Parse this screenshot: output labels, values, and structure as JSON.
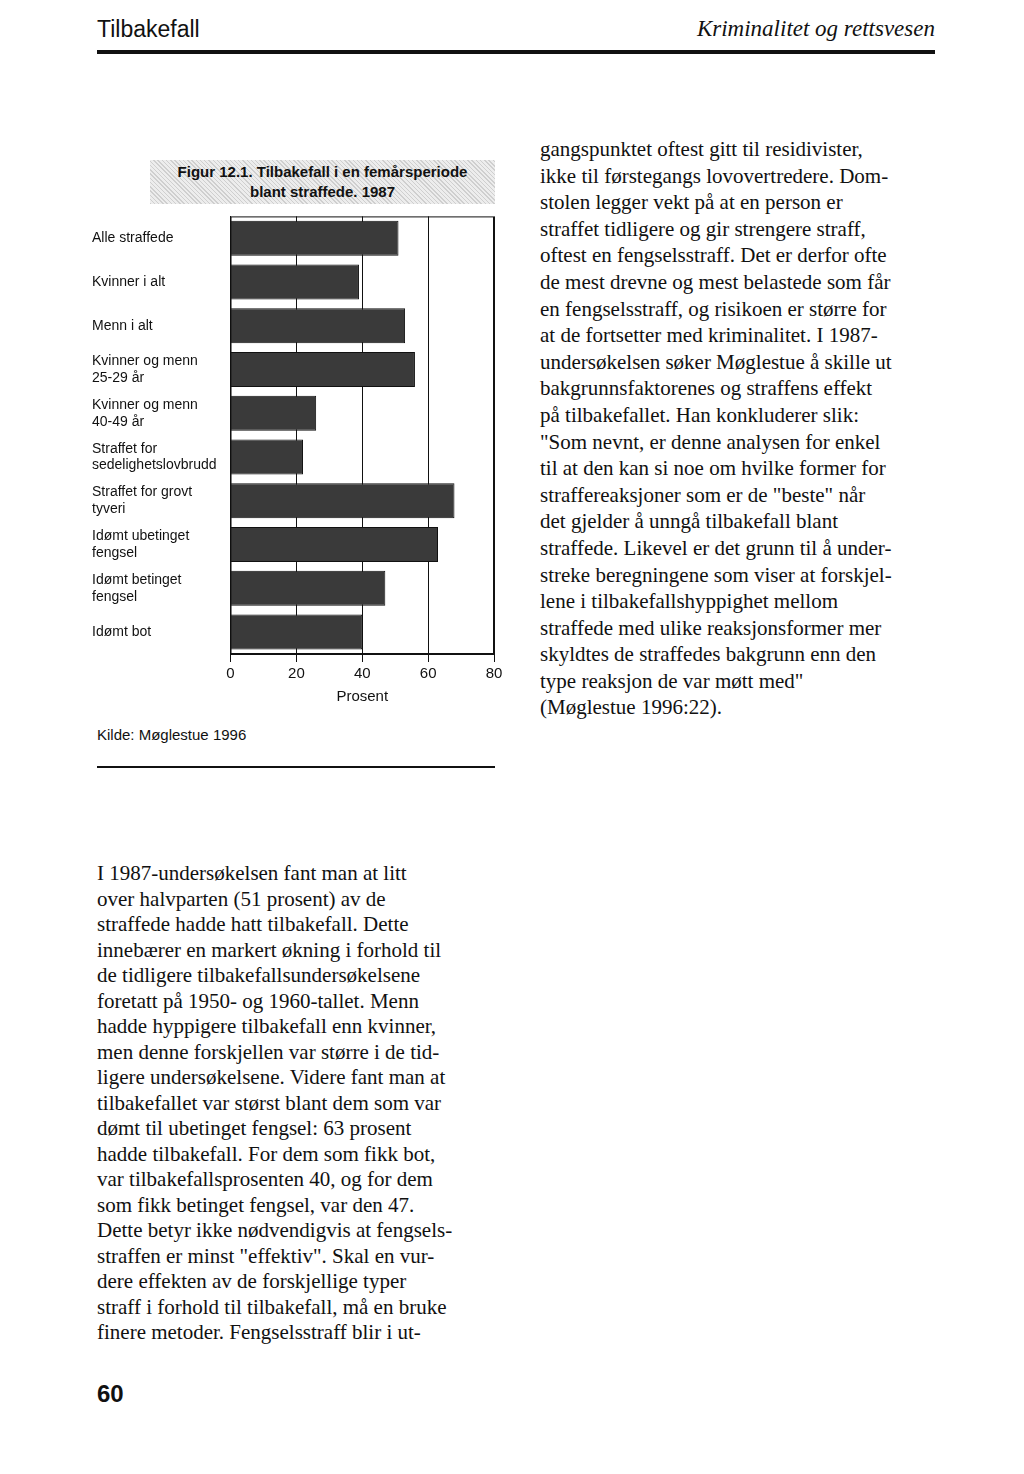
{
  "header": {
    "left": "Tilbakefall",
    "right": "Kriminalitet og rettsvesen"
  },
  "chart_data": {
    "type": "bar",
    "orientation": "horizontal",
    "title": "Figur 12.1. Tilbakefall i en femårsperiode\nblant straffede. 1987",
    "categories": [
      "Alle straffede",
      "Kvinner i alt",
      "Menn i alt",
      "Kvinner og menn\n25-29 år",
      "Kvinner og menn\n40-49 år",
      "Straffet for\nsedelighetslovbrudd",
      "Straffet for grovt\ntyveri",
      "Idømt ubetinget\nfengsel",
      "Idømt betinget\nfengsel",
      "Idømt bot"
    ],
    "values": [
      51,
      39,
      53,
      56,
      26,
      22,
      68,
      63,
      47,
      40
    ],
    "color": "#3a3a3a",
    "xlabel": "Prosent",
    "xlim": [
      0,
      80
    ],
    "xticks": [
      0,
      20,
      40,
      60,
      80
    ],
    "grid": true,
    "source": "Kilde: Møglestue 1996"
  },
  "text": {
    "right_column": [
      "gangspunktet oftest gitt til residivister,",
      "ikke til førstegangs lovovertredere. Dom-",
      "stolen legger vekt på at en person er",
      "straffet tidligere og gir strengere straff,",
      "oftest en fengselsstraff. Det er derfor ofte",
      "de mest drevne og mest belastede som får",
      "en fengselsstraff, og risikoen er større for",
      "at de fortsetter med kriminalitet. I 1987-",
      "undersøkelsen søker Møglestue å skille ut",
      "bakgrunnsfaktorenes og straffens effekt",
      "på tilbakefallet. Han konkluderer slik:",
      "\"Som nevnt, er denne analysen for enkel",
      "til at den kan si noe om hvilke former for",
      "straffereaksjoner som er de \"beste\" når",
      "det gjelder å unngå tilbakefall blant",
      "straffede. Likevel er det grunn til å under-",
      "streke beregningene som viser at forskjel-",
      "lene i tilbakefallshyppighet mellom",
      "straffede med ulike reaksjonsformer mer",
      "skyldtes de straffedes bakgrunn enn den",
      "type reaksjon de var møtt med\"",
      "(Møglestue 1996:22)."
    ],
    "left_column": [
      "I 1987-undersøkelsen fant man at litt",
      "over halvparten (51 prosent) av de",
      "straffede hadde hatt tilbakefall. Dette",
      "innebærer en markert økning i forhold til",
      "de tidligere tilbakefallsundersøkelsene",
      "foretatt på 1950- og 1960-tallet. Menn",
      "hadde hyppigere tilbakefall enn kvinner,",
      "men denne forskjellen var større i de tid-",
      "ligere undersøkelsene. Videre fant man at",
      "tilbakefallet var størst blant dem som var",
      "dømt til ubetinget fengsel: 63 prosent",
      "hadde tilbakefall. For dem som fikk bot,",
      "var tilbakefallsprosenten 40, og for dem",
      "som fikk betinget fengsel, var den 47.",
      "Dette betyr ikke nødvendigvis at fengsels-",
      "straffen er minst \"effektiv\". Skal en vur-",
      "dere effekten av de forskjellige typer",
      "straff i forhold til tilbakefall, må en bruke",
      "finere metoder. Fengselsstraff blir i ut-"
    ]
  },
  "page_number": "60"
}
